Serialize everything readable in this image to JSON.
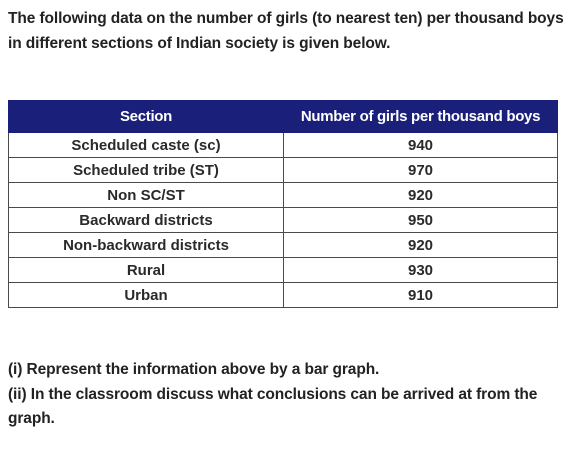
{
  "intro": "The following data on the number of girls (to nearest ten) per thousand boys in different sections of Indian society is given below.",
  "table": {
    "headers": [
      "Section",
      "Number of girls per thousand boys"
    ],
    "rows": [
      {
        "section": "Scheduled caste (sc)",
        "value": "940"
      },
      {
        "section": "Scheduled tribe (ST)",
        "value": "970"
      },
      {
        "section": "Non SC/ST",
        "value": "920"
      },
      {
        "section": "Backward districts",
        "value": "950"
      },
      {
        "section": "Non-backward districts",
        "value": "920"
      },
      {
        "section": "Rural",
        "value": "930"
      },
      {
        "section": "Urban",
        "value": "910"
      }
    ]
  },
  "questions": [
    "(i) Represent the information above by a bar graph.",
    "(ii) In the classroom discuss what conclusions can be arrived at from the graph."
  ]
}
